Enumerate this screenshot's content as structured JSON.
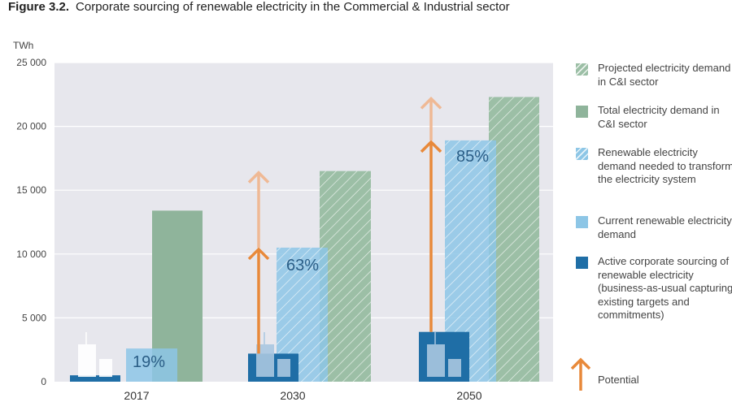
{
  "title": {
    "label": "Figure 3.2.",
    "text": "Corporate sourcing of renewable electricity in the Commercial & Industrial sector"
  },
  "chart_data": {
    "type": "bar",
    "ylabel": "TWh",
    "ylim": [
      0,
      25000
    ],
    "yticks": [
      0,
      5000,
      10000,
      15000,
      20000,
      25000
    ],
    "ytick_labels": [
      "0",
      "5 000",
      "10 000",
      "15 000",
      "20 000",
      "25 000"
    ],
    "categories": [
      "2017",
      "2030",
      "2050"
    ],
    "grid": true,
    "legend_position": "right",
    "series": [
      {
        "name": "Active corporate sourcing of renewable electricity (business-as-usual capturing existing targets and commitments)",
        "key": "active",
        "values": [
          500,
          2200,
          3900
        ]
      },
      {
        "name": "Current renewable electricity demand",
        "key": "current",
        "values": [
          2600,
          null,
          null
        ]
      },
      {
        "name": "Renewable electricity demand needed to transform the electricity system",
        "key": "needed",
        "values": [
          null,
          10500,
          18900
        ]
      },
      {
        "name": "Total electricity demand in C&I sector",
        "key": "total",
        "values": [
          13400,
          null,
          null
        ]
      },
      {
        "name": "Projected electricity demand in C&I sector",
        "key": "projected",
        "values": [
          null,
          16500,
          22300
        ]
      }
    ],
    "share_labels": [
      "19%",
      "63%",
      "85%"
    ],
    "potential_arrows": [
      {
        "category": "2030",
        "from": 2200,
        "to_renewable": 10500,
        "to_total": 16500
      },
      {
        "category": "2050",
        "from": 3900,
        "to_renewable": 18900,
        "to_total": 22300
      }
    ]
  },
  "legend": [
    {
      "label": "Projected electricity demand in C&I sector",
      "key": "projected"
    },
    {
      "label": "Total electricity demand in C&I sector",
      "key": "total"
    },
    {
      "label": "Renewable electricity demand needed to transform the electricity system",
      "key": "needed"
    },
    {
      "label": "Current renewable electricity demand",
      "key": "current"
    },
    {
      "label": "Active corporate sourcing of renewable electricity (business-as-usual capturing existing targets and commitments)",
      "key": "active"
    },
    {
      "label": "Potential",
      "key": "potential"
    }
  ],
  "colors": {
    "active": "#1f6ea6",
    "current": "#8dc6e6",
    "needed": "#8dc6e6",
    "total": "#8fb49b",
    "projected": "#9cbfa6",
    "potential": "#e8893a",
    "potential_light": "#efb995",
    "plot_bg": "#e7e7ed"
  }
}
